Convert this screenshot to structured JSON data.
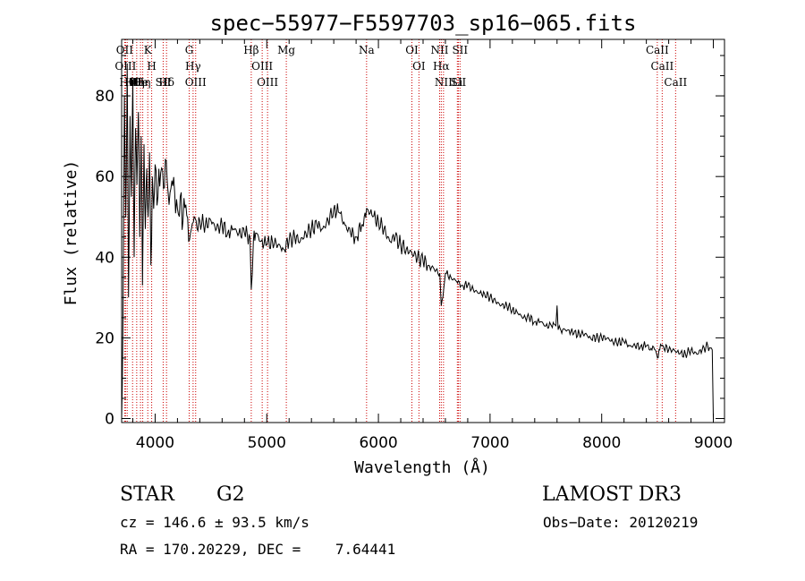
{
  "chart_data": {
    "type": "line",
    "title": "spec−55977−F5597703_sp16−065.fits",
    "xlabel": "Wavelength (Å)",
    "ylabel": "Flux (relative)",
    "xlim": [
      3700,
      9100
    ],
    "ylim": [
      -1,
      94
    ],
    "xticks": [
      4000,
      5000,
      6000,
      7000,
      8000,
      9000
    ],
    "yticks": [
      0,
      20,
      40,
      60,
      80
    ],
    "xtick_labels": [
      "4000",
      "5000",
      "6000",
      "7000",
      "8000",
      "9000"
    ],
    "ytick_labels": [
      "0",
      "20",
      "40",
      "60",
      "80"
    ],
    "series": [
      {
        "name": "flux",
        "x": [
          3700,
          3712,
          3725,
          3737,
          3750,
          3762,
          3775,
          3787,
          3800,
          3812,
          3825,
          3837,
          3850,
          3862,
          3875,
          3887,
          3900,
          3912,
          3925,
          3937,
          3950,
          3962,
          3975,
          3987,
          4000,
          4025,
          4050,
          4075,
          4100,
          4125,
          4150,
          4175,
          4200,
          4225,
          4250,
          4275,
          4300,
          4325,
          4350,
          4375,
          4400,
          4450,
          4500,
          4550,
          4600,
          4650,
          4700,
          4750,
          4800,
          4850,
          4861,
          4880,
          4900,
          4950,
          5000,
          5050,
          5100,
          5150,
          5200,
          5250,
          5300,
          5350,
          5400,
          5450,
          5500,
          5550,
          5600,
          5650,
          5700,
          5750,
          5800,
          5850,
          5880,
          5900,
          5950,
          6000,
          6050,
          6100,
          6150,
          6200,
          6250,
          6300,
          6350,
          6400,
          6450,
          6500,
          6550,
          6563,
          6600,
          6650,
          6700,
          6750,
          6800,
          6850,
          6900,
          6950,
          7000,
          7050,
          7100,
          7150,
          7200,
          7250,
          7300,
          7350,
          7400,
          7450,
          7500,
          7550,
          7590,
          7600,
          7610,
          7620,
          7650,
          7700,
          7750,
          7800,
          7850,
          7900,
          7950,
          8000,
          8050,
          8100,
          8150,
          8200,
          8250,
          8300,
          8350,
          8400,
          8450,
          8480,
          8500,
          8520,
          8550,
          8600,
          8650,
          8700,
          8750,
          8800,
          8850,
          8900,
          8950,
          8990,
          9000
        ],
        "y": [
          0,
          25,
          80,
          50,
          88,
          30,
          75,
          55,
          84,
          40,
          72,
          58,
          76,
          45,
          70,
          33,
          68,
          47,
          62,
          50,
          66,
          38,
          60,
          52,
          63,
          55,
          61,
          57,
          64,
          53,
          59,
          56,
          52,
          55,
          49,
          53,
          44,
          47,
          50,
          47,
          49,
          48,
          49,
          47,
          48,
          46,
          47,
          46,
          46,
          45,
          32,
          44,
          46,
          44,
          43,
          44,
          43,
          42,
          44,
          45,
          44,
          46,
          47,
          48,
          47,
          49,
          52,
          51,
          48,
          46,
          45,
          48,
          51,
          52,
          50,
          49,
          47,
          44,
          45,
          43,
          42,
          41,
          40,
          39,
          38,
          37,
          36,
          28,
          36,
          35,
          34,
          33,
          33,
          32,
          31,
          31,
          30,
          29,
          28,
          28,
          27,
          26,
          25,
          25,
          24,
          24,
          23,
          23,
          23,
          28,
          22,
          23,
          22,
          22,
          21,
          21,
          21,
          20,
          20,
          20,
          20,
          19,
          19,
          19,
          18,
          18,
          18,
          18,
          17,
          17,
          15,
          17,
          18,
          17,
          17,
          16,
          16,
          17,
          16,
          17,
          18,
          17,
          0
        ]
      }
    ],
    "line_markers": [
      {
        "x": 3727,
        "label": "OII"
      },
      {
        "x": 3735,
        "label": "OIII"
      },
      {
        "x": 3750,
        "label": "Hθ"
      },
      {
        "x": 3798,
        "label": "Hθ"
      },
      {
        "x": 3835,
        "label": "Hη"
      },
      {
        "x": 3869,
        "label": "He"
      },
      {
        "x": 3889,
        "label": "Hη"
      },
      {
        "x": 3934,
        "label": "K"
      },
      {
        "x": 3969,
        "label": "H"
      },
      {
        "x": 4072,
        "label": "SII"
      },
      {
        "x": 4102,
        "label": "Hδ"
      },
      {
        "x": 4305,
        "label": "G"
      },
      {
        "x": 4340,
        "label": "Hγ"
      },
      {
        "x": 4363,
        "label": "OIII"
      },
      {
        "x": 4861,
        "label": "Hβ"
      },
      {
        "x": 4959,
        "label": "OIII"
      },
      {
        "x": 5007,
        "label": "OIII"
      },
      {
        "x": 5175,
        "label": "Mg"
      },
      {
        "x": 5894,
        "label": "Na"
      },
      {
        "x": 6300,
        "label": "OI"
      },
      {
        "x": 6363,
        "label": "OI"
      },
      {
        "x": 6548,
        "label": "NII"
      },
      {
        "x": 6563,
        "label": "Hα"
      },
      {
        "x": 6583,
        "label": "NII"
      },
      {
        "x": 6716,
        "label": "SII"
      },
      {
        "x": 6707,
        "label": "Li"
      },
      {
        "x": 6731,
        "label": "SII"
      },
      {
        "x": 8498,
        "label": "CaII"
      },
      {
        "x": 8542,
        "label": "CaII"
      },
      {
        "x": 8662,
        "label": "CaII"
      }
    ]
  },
  "info": {
    "object_class": "STAR",
    "subclass": "G2",
    "survey": "LAMOST DR3",
    "redshift_line": "cz = 146.6 ± 93.5 km/s",
    "obs_date_line": "Obs−Date: 20120219",
    "coords_line": "RA = 170.20229, DEC =    7.64441"
  },
  "colors": {
    "spectrum": "#000000",
    "markers": "#cc0000",
    "axes": "#000000"
  }
}
